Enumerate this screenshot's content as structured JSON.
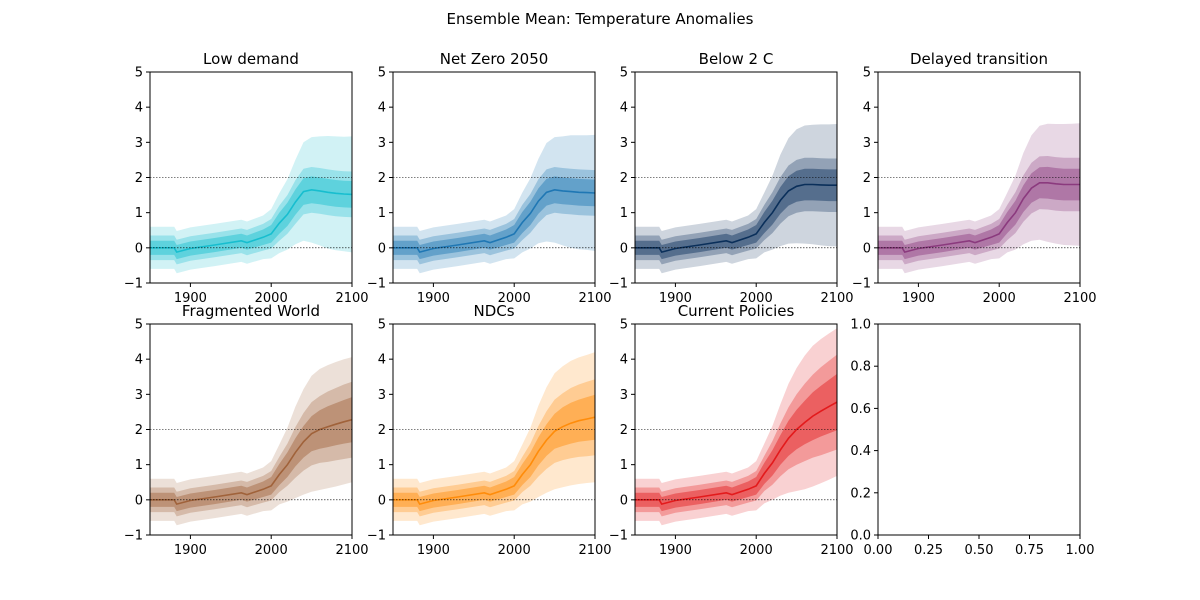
{
  "figure": {
    "title": "Ensemble Mean: Temperature Anomalies"
  },
  "chart_data": [
    {
      "type": "area",
      "title": "Low demand",
      "color": "#17becf",
      "xlim": [
        1850,
        2100
      ],
      "ylim": [
        -1,
        5
      ],
      "xticks": [
        "1900",
        "2000",
        "2100"
      ],
      "yticks": [
        "−1",
        "0",
        "1",
        "2",
        "3",
        "4",
        "5"
      ],
      "reference_lines": [
        0,
        2
      ],
      "x": [
        1850,
        1880,
        1883,
        1900,
        1930,
        1963,
        1970,
        1990,
        2000,
        2010,
        2020,
        2030,
        2040,
        2050,
        2060,
        2070,
        2080,
        2090,
        2100
      ],
      "mean": [
        0.0,
        0.0,
        -0.12,
        -0.02,
        0.08,
        0.2,
        0.15,
        0.3,
        0.4,
        0.7,
        0.95,
        1.3,
        1.6,
        1.65,
        1.62,
        1.58,
        1.55,
        1.53,
        1.52
      ],
      "inner_band": [
        0.2,
        0.2,
        0.2,
        0.2,
        0.2,
        0.2,
        0.2,
        0.22,
        0.25,
        0.3,
        0.33,
        0.36,
        0.38,
        0.38,
        0.38,
        0.38,
        0.38,
        0.38,
        0.38
      ],
      "mid_band": [
        0.35,
        0.35,
        0.35,
        0.35,
        0.35,
        0.35,
        0.36,
        0.38,
        0.42,
        0.5,
        0.55,
        0.62,
        0.65,
        0.65,
        0.65,
        0.65,
        0.65,
        0.65,
        0.65
      ],
      "outer_band": [
        0.6,
        0.6,
        0.6,
        0.6,
        0.6,
        0.6,
        0.6,
        0.62,
        0.7,
        0.85,
        1.0,
        1.2,
        1.4,
        1.5,
        1.55,
        1.6,
        1.62,
        1.63,
        1.65
      ]
    },
    {
      "type": "area",
      "title": "Net Zero 2050",
      "color": "#1f77b4",
      "xlim": [
        1850,
        2100
      ],
      "ylim": [
        -1,
        5
      ],
      "xticks": [
        "1900",
        "2000",
        "2100"
      ],
      "yticks": [
        "−1",
        "0",
        "1",
        "2",
        "3",
        "4",
        "5"
      ],
      "reference_lines": [
        0,
        2
      ],
      "x": [
        1850,
        1880,
        1883,
        1900,
        1930,
        1963,
        1970,
        1990,
        2000,
        2010,
        2020,
        2030,
        2040,
        2050,
        2060,
        2070,
        2080,
        2090,
        2100
      ],
      "mean": [
        0.0,
        0.0,
        -0.12,
        -0.02,
        0.08,
        0.2,
        0.15,
        0.3,
        0.4,
        0.72,
        0.98,
        1.33,
        1.58,
        1.65,
        1.62,
        1.6,
        1.58,
        1.57,
        1.56
      ],
      "inner_band": [
        0.2,
        0.2,
        0.2,
        0.2,
        0.2,
        0.2,
        0.2,
        0.22,
        0.25,
        0.3,
        0.33,
        0.36,
        0.38,
        0.38,
        0.38,
        0.38,
        0.38,
        0.38,
        0.38
      ],
      "mid_band": [
        0.35,
        0.35,
        0.35,
        0.35,
        0.35,
        0.35,
        0.36,
        0.38,
        0.42,
        0.5,
        0.55,
        0.62,
        0.65,
        0.65,
        0.65,
        0.65,
        0.65,
        0.65,
        0.65
      ],
      "outer_band": [
        0.6,
        0.6,
        0.6,
        0.6,
        0.6,
        0.6,
        0.6,
        0.62,
        0.7,
        0.85,
        1.0,
        1.2,
        1.4,
        1.5,
        1.55,
        1.6,
        1.62,
        1.63,
        1.65
      ]
    },
    {
      "type": "area",
      "title": "Below 2 C",
      "color": "#0a2f5a",
      "xlim": [
        1850,
        2100
      ],
      "ylim": [
        -1,
        5
      ],
      "xticks": [
        "1900",
        "2000",
        "2100"
      ],
      "yticks": [
        "−1",
        "0",
        "1",
        "2",
        "3",
        "4",
        "5"
      ],
      "reference_lines": [
        0,
        2
      ],
      "x": [
        1850,
        1880,
        1883,
        1900,
        1930,
        1963,
        1970,
        1990,
        2000,
        2010,
        2020,
        2030,
        2040,
        2050,
        2060,
        2070,
        2080,
        2090,
        2100
      ],
      "mean": [
        0.0,
        0.0,
        -0.12,
        -0.02,
        0.08,
        0.2,
        0.15,
        0.3,
        0.4,
        0.72,
        1.0,
        1.35,
        1.62,
        1.75,
        1.8,
        1.8,
        1.79,
        1.78,
        1.78
      ],
      "inner_band": [
        0.2,
        0.2,
        0.2,
        0.2,
        0.2,
        0.2,
        0.2,
        0.22,
        0.25,
        0.3,
        0.34,
        0.38,
        0.42,
        0.44,
        0.45,
        0.45,
        0.45,
        0.45,
        0.45
      ],
      "mid_band": [
        0.35,
        0.35,
        0.35,
        0.35,
        0.35,
        0.35,
        0.36,
        0.38,
        0.42,
        0.5,
        0.58,
        0.66,
        0.72,
        0.75,
        0.76,
        0.76,
        0.76,
        0.76,
        0.76
      ],
      "outer_band": [
        0.6,
        0.6,
        0.6,
        0.6,
        0.6,
        0.6,
        0.6,
        0.62,
        0.7,
        0.85,
        1.05,
        1.3,
        1.5,
        1.62,
        1.68,
        1.7,
        1.72,
        1.73,
        1.74
      ]
    },
    {
      "type": "area",
      "title": "Delayed transition",
      "color": "#8b3a7e",
      "xlim": [
        1850,
        2100
      ],
      "ylim": [
        -1,
        5
      ],
      "xticks": [
        "1900",
        "2000",
        "2100"
      ],
      "yticks": [
        "−1",
        "0",
        "1",
        "2",
        "3",
        "4",
        "5"
      ],
      "reference_lines": [
        0,
        2
      ],
      "x": [
        1850,
        1880,
        1883,
        1900,
        1930,
        1963,
        1970,
        1990,
        2000,
        2010,
        2020,
        2030,
        2040,
        2050,
        2060,
        2070,
        2080,
        2090,
        2100
      ],
      "mean": [
        0.0,
        0.0,
        -0.12,
        -0.02,
        0.08,
        0.2,
        0.15,
        0.3,
        0.4,
        0.72,
        1.0,
        1.4,
        1.7,
        1.85,
        1.85,
        1.82,
        1.8,
        1.8,
        1.8
      ],
      "inner_band": [
        0.2,
        0.2,
        0.2,
        0.2,
        0.2,
        0.2,
        0.2,
        0.22,
        0.25,
        0.3,
        0.34,
        0.38,
        0.42,
        0.44,
        0.45,
        0.45,
        0.45,
        0.45,
        0.45
      ],
      "mid_band": [
        0.35,
        0.35,
        0.35,
        0.35,
        0.35,
        0.35,
        0.36,
        0.38,
        0.42,
        0.5,
        0.58,
        0.66,
        0.72,
        0.75,
        0.76,
        0.76,
        0.76,
        0.76,
        0.76
      ],
      "outer_band": [
        0.6,
        0.6,
        0.6,
        0.6,
        0.6,
        0.6,
        0.6,
        0.62,
        0.7,
        0.85,
        1.05,
        1.3,
        1.5,
        1.62,
        1.68,
        1.7,
        1.72,
        1.73,
        1.74
      ]
    },
    {
      "type": "area",
      "title": "Fragmented World",
      "color": "#a0623a",
      "xlim": [
        1850,
        2100
      ],
      "ylim": [
        -1,
        5
      ],
      "xticks": [
        "1900",
        "2000",
        "2100"
      ],
      "yticks": [
        "−1",
        "0",
        "1",
        "2",
        "3",
        "4",
        "5"
      ],
      "reference_lines": [
        0,
        2
      ],
      "x": [
        1850,
        1880,
        1883,
        1900,
        1930,
        1963,
        1970,
        1990,
        2000,
        2010,
        2020,
        2030,
        2040,
        2050,
        2060,
        2070,
        2080,
        2090,
        2100
      ],
      "mean": [
        0.0,
        0.0,
        -0.12,
        -0.02,
        0.08,
        0.2,
        0.15,
        0.3,
        0.4,
        0.72,
        1.0,
        1.35,
        1.65,
        1.88,
        2.0,
        2.08,
        2.15,
        2.22,
        2.28
      ],
      "inner_band": [
        0.2,
        0.2,
        0.2,
        0.2,
        0.2,
        0.2,
        0.2,
        0.22,
        0.25,
        0.3,
        0.35,
        0.4,
        0.45,
        0.5,
        0.55,
        0.58,
        0.6,
        0.62,
        0.64
      ],
      "mid_band": [
        0.35,
        0.35,
        0.35,
        0.35,
        0.35,
        0.35,
        0.36,
        0.38,
        0.42,
        0.5,
        0.6,
        0.72,
        0.82,
        0.9,
        0.95,
        1.0,
        1.03,
        1.06,
        1.08
      ],
      "outer_band": [
        0.6,
        0.6,
        0.6,
        0.6,
        0.6,
        0.6,
        0.6,
        0.62,
        0.7,
        0.85,
        1.05,
        1.3,
        1.5,
        1.65,
        1.72,
        1.75,
        1.77,
        1.78,
        1.78
      ]
    },
    {
      "type": "area",
      "title": "NDCs",
      "color": "#ff8c0a",
      "xlim": [
        1850,
        2100
      ],
      "ylim": [
        -1,
        5
      ],
      "xticks": [
        "1900",
        "2000",
        "2100"
      ],
      "yticks": [
        "−1",
        "0",
        "1",
        "2",
        "3",
        "4",
        "5"
      ],
      "reference_lines": [
        0,
        2
      ],
      "x": [
        1850,
        1880,
        1883,
        1900,
        1930,
        1963,
        1970,
        1990,
        2000,
        2010,
        2020,
        2030,
        2040,
        2050,
        2060,
        2070,
        2080,
        2090,
        2100
      ],
      "mean": [
        0.0,
        0.0,
        -0.12,
        -0.02,
        0.08,
        0.2,
        0.15,
        0.3,
        0.4,
        0.72,
        1.0,
        1.38,
        1.7,
        1.95,
        2.08,
        2.18,
        2.25,
        2.3,
        2.35
      ],
      "inner_band": [
        0.2,
        0.2,
        0.2,
        0.2,
        0.2,
        0.2,
        0.2,
        0.22,
        0.25,
        0.3,
        0.35,
        0.4,
        0.45,
        0.5,
        0.55,
        0.58,
        0.6,
        0.62,
        0.64
      ],
      "mid_band": [
        0.35,
        0.35,
        0.35,
        0.35,
        0.35,
        0.35,
        0.36,
        0.38,
        0.42,
        0.5,
        0.6,
        0.72,
        0.82,
        0.9,
        0.95,
        1.0,
        1.03,
        1.06,
        1.08
      ],
      "outer_band": [
        0.6,
        0.6,
        0.6,
        0.6,
        0.6,
        0.6,
        0.6,
        0.62,
        0.7,
        0.85,
        1.05,
        1.3,
        1.5,
        1.65,
        1.72,
        1.77,
        1.8,
        1.82,
        1.85
      ]
    },
    {
      "type": "area",
      "title": "Current Policies",
      "color": "#e31a1c",
      "xlim": [
        1850,
        2100
      ],
      "ylim": [
        -1,
        5
      ],
      "xticks": [
        "1900",
        "2000",
        "2100"
      ],
      "yticks": [
        "−1",
        "0",
        "1",
        "2",
        "3",
        "4",
        "5"
      ],
      "reference_lines": [
        0,
        2
      ],
      "x": [
        1850,
        1880,
        1883,
        1900,
        1930,
        1963,
        1970,
        1990,
        2000,
        2010,
        2020,
        2030,
        2040,
        2050,
        2060,
        2070,
        2080,
        2090,
        2100
      ],
      "mean": [
        0.0,
        0.0,
        -0.12,
        -0.02,
        0.08,
        0.2,
        0.15,
        0.3,
        0.4,
        0.75,
        1.05,
        1.42,
        1.75,
        2.0,
        2.2,
        2.38,
        2.52,
        2.65,
        2.78
      ],
      "inner_band": [
        0.2,
        0.2,
        0.2,
        0.2,
        0.2,
        0.2,
        0.2,
        0.22,
        0.25,
        0.3,
        0.36,
        0.42,
        0.5,
        0.56,
        0.62,
        0.68,
        0.72,
        0.76,
        0.8
      ],
      "mid_band": [
        0.35,
        0.35,
        0.35,
        0.35,
        0.35,
        0.35,
        0.36,
        0.38,
        0.42,
        0.5,
        0.62,
        0.75,
        0.88,
        1.0,
        1.1,
        1.18,
        1.25,
        1.3,
        1.35
      ],
      "outer_band": [
        0.6,
        0.6,
        0.6,
        0.6,
        0.6,
        0.6,
        0.6,
        0.62,
        0.7,
        0.85,
        1.05,
        1.3,
        1.55,
        1.75,
        1.9,
        2.0,
        2.05,
        2.08,
        2.1
      ]
    },
    {
      "type": "line",
      "title": "",
      "xlim": [
        0.0,
        1.0
      ],
      "ylim": [
        0.0,
        1.0
      ],
      "xticks": [
        "0.00",
        "0.25",
        "0.50",
        "0.75",
        "1.00"
      ],
      "yticks": [
        "0.0",
        "0.2",
        "0.4",
        "0.6",
        "0.8",
        "1.0"
      ],
      "series": []
    }
  ]
}
